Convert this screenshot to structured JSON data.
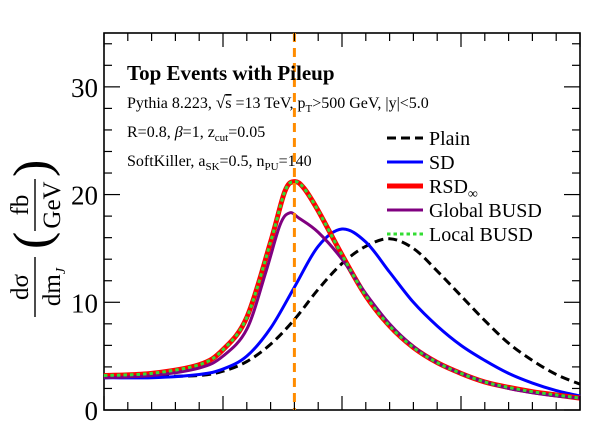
{
  "chart_data": {
    "type": "line",
    "title": "Top Events with Pileup",
    "annotations": [
      {
        "kind": "pythia",
        "parts": [
          "Pythia 8.223, ",
          "s",
          " =13 TeV, p",
          "T",
          ">500 GeV, |y|<5.0"
        ]
      },
      {
        "kind": "params",
        "parts": [
          "R=0.8, ",
          "β",
          "=1, z",
          "cut",
          "=0.05"
        ]
      },
      {
        "kind": "softkiller",
        "parts": [
          "SoftKiller, a",
          "SK",
          "=0.5, n",
          "PU",
          "=140"
        ]
      }
    ],
    "ylabel_parts": [
      "dσ",
      "dm",
      "J",
      "fb",
      "GeV"
    ],
    "xlabel": "",
    "ylim": [
      0,
      35
    ],
    "xlim": [
      0,
      1
    ],
    "yticks": [
      0,
      10,
      20,
      30
    ],
    "grid": false,
    "legend_position": "top-right",
    "reference_line": {
      "x": 0.4,
      "color": "#ff8c00",
      "style": "dashed"
    },
    "series": [
      {
        "name": "Plain",
        "color": "#000000",
        "dash": "dashed",
        "x": [
          0.0,
          0.1,
          0.2,
          0.25,
          0.3,
          0.35,
          0.4,
          0.45,
          0.5,
          0.55,
          0.6,
          0.65,
          0.7,
          0.75,
          0.8,
          0.85,
          0.9,
          0.95,
          1.0
        ],
        "y": [
          3.0,
          3.1,
          3.2,
          3.6,
          4.5,
          6.1,
          8.4,
          11.2,
          13.6,
          15.2,
          15.9,
          15.0,
          12.9,
          10.6,
          8.3,
          6.2,
          4.6,
          3.3,
          2.4
        ]
      },
      {
        "name": "SD",
        "color": "#0000ff",
        "dash": "solid",
        "x": [
          0.0,
          0.1,
          0.2,
          0.25,
          0.3,
          0.35,
          0.4,
          0.45,
          0.5,
          0.55,
          0.6,
          0.65,
          0.7,
          0.75,
          0.8,
          0.85,
          0.9,
          0.95,
          1.0
        ],
        "y": [
          3.0,
          3.0,
          3.3,
          3.8,
          5.0,
          7.6,
          11.4,
          15.2,
          16.8,
          15.6,
          12.8,
          10.0,
          7.8,
          6.0,
          4.6,
          3.4,
          2.5,
          1.8,
          1.3
        ]
      },
      {
        "name": "RSD∞",
        "color": "#ff0000",
        "dash": "solid",
        "x": [
          0.0,
          0.1,
          0.2,
          0.25,
          0.3,
          0.35,
          0.38,
          0.4,
          0.42,
          0.45,
          0.5,
          0.55,
          0.6,
          0.65,
          0.7,
          0.75,
          0.8,
          0.85,
          0.9,
          0.95,
          1.0
        ],
        "y": [
          3.2,
          3.4,
          4.2,
          5.6,
          8.6,
          15.6,
          20.3,
          21.2,
          20.6,
          18.5,
          14.4,
          10.6,
          7.8,
          5.8,
          4.4,
          3.4,
          2.6,
          2.1,
          1.7,
          1.4,
          1.1
        ]
      },
      {
        "name": "Global BUSD",
        "color": "#800080",
        "dash": "solid",
        "x": [
          0.0,
          0.1,
          0.2,
          0.25,
          0.3,
          0.34,
          0.37,
          0.39,
          0.41,
          0.45,
          0.5,
          0.55,
          0.6,
          0.65,
          0.7,
          0.75,
          0.8,
          0.85,
          0.9,
          0.95,
          1.0
        ],
        "y": [
          3.0,
          3.2,
          3.9,
          5.0,
          7.5,
          12.8,
          17.2,
          18.3,
          17.8,
          16.5,
          14.0,
          10.8,
          8.0,
          5.9,
          4.4,
          3.4,
          2.6,
          2.0,
          1.6,
          1.3,
          1.1
        ]
      },
      {
        "name": "Local BUSD",
        "color": "#33dd33",
        "dash": "dotted",
        "x": [
          0.0,
          0.1,
          0.2,
          0.25,
          0.3,
          0.35,
          0.38,
          0.4,
          0.42,
          0.45,
          0.5,
          0.55,
          0.6,
          0.65,
          0.7,
          0.75,
          0.8,
          0.85,
          0.9,
          0.95,
          1.0
        ],
        "y": [
          3.2,
          3.4,
          4.2,
          5.6,
          8.6,
          15.6,
          20.3,
          21.2,
          20.6,
          18.5,
          14.4,
          10.6,
          7.8,
          5.8,
          4.4,
          3.4,
          2.6,
          2.1,
          1.7,
          1.4,
          1.1
        ]
      }
    ]
  }
}
